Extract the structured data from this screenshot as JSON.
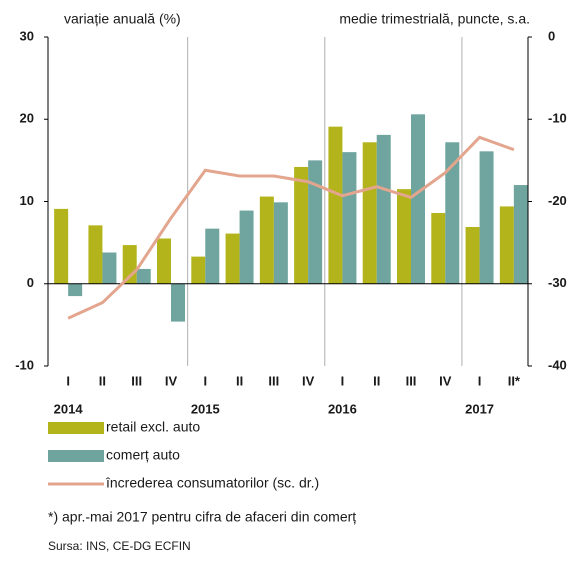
{
  "chart_data": {
    "type": "bar",
    "left_axis_label": "variație anuală (%)",
    "right_axis_label": "medie trimestrială,  puncte, s.a.",
    "categories": [
      "I",
      "II",
      "III",
      "IV",
      "I",
      "II",
      "III",
      "IV",
      "I",
      "II",
      "III",
      "IV",
      "I",
      "II*"
    ],
    "year_labels": [
      "2014",
      "2015",
      "2016",
      "2017"
    ],
    "series": [
      {
        "name": "retail excl. auto",
        "color": "#b3b41b",
        "type": "bar",
        "axis": "y",
        "values": [
          9.1,
          7.1,
          4.7,
          5.5,
          3.3,
          6.1,
          10.6,
          14.2,
          19.1,
          17.2,
          11.5,
          8.6,
          6.9,
          9.4
        ]
      },
      {
        "name": "comerț auto",
        "color": "#6fa59e",
        "type": "bar",
        "axis": "y",
        "values": [
          -1.5,
          3.8,
          1.8,
          -4.6,
          6.7,
          8.9,
          9.9,
          15.0,
          16.0,
          18.1,
          20.6,
          17.2,
          16.1,
          12.0
        ]
      },
      {
        "name": "încrederea consumatorilor (sc. dr.)",
        "color": "#e3a58d",
        "type": "line",
        "axis": "y2",
        "values": [
          -34.2,
          -32.3,
          -28.3,
          -22.0,
          -16.2,
          -16.9,
          -16.9,
          -17.6,
          -19.3,
          -18.2,
          -19.5,
          -16.5,
          -12.2,
          -13.7
        ]
      }
    ],
    "ylim": [
      -10,
      30
    ],
    "yticks": [
      -10,
      0,
      10,
      20,
      30
    ],
    "y2lim": [
      -40,
      0
    ],
    "y2ticks": [
      -40,
      -30,
      -20,
      -10,
      0
    ],
    "footnote": "*) apr.-mai 2017  pentru cifra de afaceri din comerț",
    "source": "Sursa: INS, CE-DG  ECFIN"
  }
}
